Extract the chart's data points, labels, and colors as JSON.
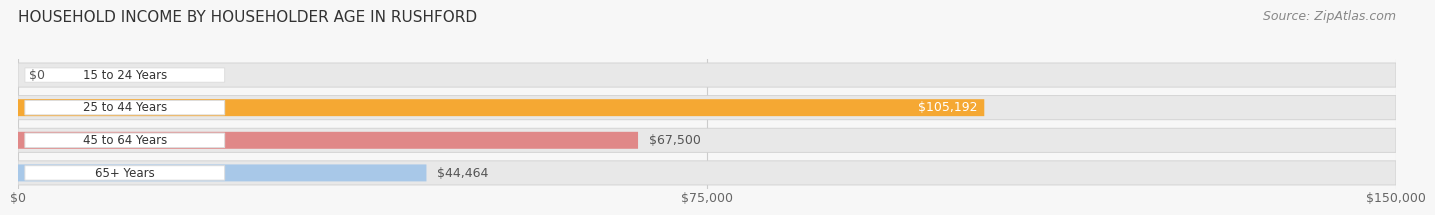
{
  "title": "HOUSEHOLD INCOME BY HOUSEHOLDER AGE IN RUSHFORD",
  "source": "Source: ZipAtlas.com",
  "categories": [
    "15 to 24 Years",
    "25 to 44 Years",
    "45 to 64 Years",
    "65+ Years"
  ],
  "values": [
    0,
    105192,
    67500,
    44464
  ],
  "labels": [
    "$0",
    "$105,192",
    "$67,500",
    "$44,464"
  ],
  "bar_colors": [
    "#f4a0b0",
    "#f5a833",
    "#e08888",
    "#a8c8e8"
  ],
  "track_color": "#e8e8e8",
  "xmax": 150000,
  "xticks": [
    0,
    75000,
    150000
  ],
  "xticklabels": [
    "$0",
    "$75,000",
    "$150,000"
  ],
  "title_fontsize": 11,
  "source_fontsize": 9,
  "bar_height": 0.52,
  "background_color": "#f7f7f7",
  "label_inside_idx": 1,
  "label_inside_color": "#ffffff",
  "label_outside_color": "#555555"
}
